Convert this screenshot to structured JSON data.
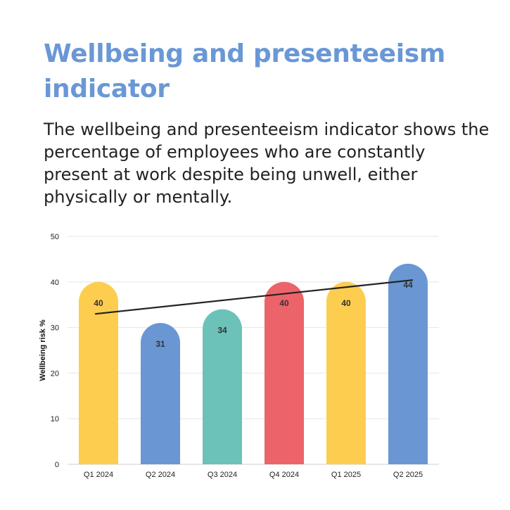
{
  "title": "Wellbeing and presenteeism indicator",
  "subtitle": "The wellbeing and presenteeism indicator shows the percentage of employees who are constantly present at work despite being unwell, either physically or mentally.",
  "chart_data": {
    "type": "bar",
    "categories": [
      "Q1 2024",
      "Q2 2024",
      "Q3 2024",
      "Q4 2024",
      "Q1 2025",
      "Q2 2025"
    ],
    "values": [
      40,
      31,
      34,
      40,
      40,
      44
    ],
    "colors": [
      "#fdcd4f",
      "#6a97d3",
      "#6cc2b8",
      "#ec6469",
      "#fdcd4f",
      "#6a97d3"
    ],
    "ylabel": "Wellbeing risk %",
    "xlabel": "",
    "ylim": [
      0,
      50
    ],
    "yticks": [
      0,
      10,
      20,
      30,
      40,
      50
    ],
    "trendline": {
      "start": 33,
      "end": 40.4,
      "color": "#222222"
    },
    "grid": true,
    "legend": "none"
  }
}
